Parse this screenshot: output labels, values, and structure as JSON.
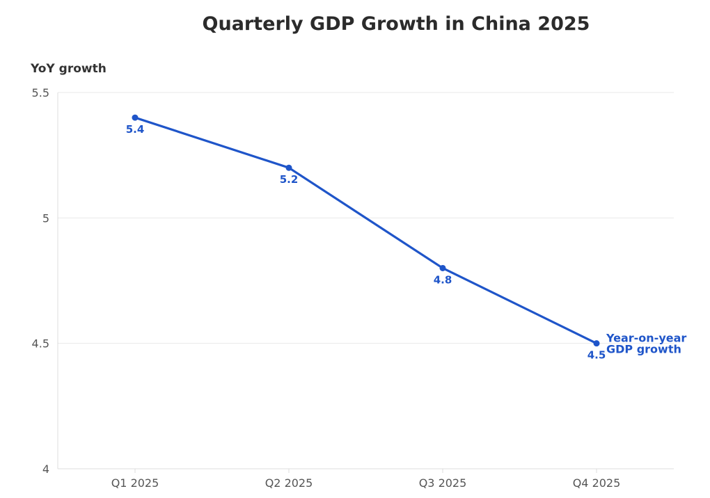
{
  "chart_data": {
    "type": "line",
    "title": "Quarterly GDP Growth in China 2025",
    "xlabel": "",
    "ylabel": "YoY growth",
    "categories": [
      "Q1 2025",
      "Q2 2025",
      "Q3 2025",
      "Q4 2025"
    ],
    "series": [
      {
        "name": "Year-on-year GDP growth",
        "name_lines": [
          "Year-on-year",
          "GDP growth"
        ],
        "values": [
          5.4,
          5.2,
          4.8,
          4.5
        ],
        "labels": [
          "5.4",
          "5.2",
          "4.8",
          "4.5"
        ],
        "color": "#1f55c9"
      }
    ],
    "ylim": [
      4,
      5.5
    ],
    "yticks": [
      4,
      4.5,
      5,
      5.5
    ],
    "ytick_labels": [
      "4",
      "4.5",
      "5",
      "5.5"
    ],
    "grid": true,
    "legend": "end-of-line label"
  },
  "colors": {
    "series": "#1f55c9",
    "grid": "#e9e9e9",
    "axis": "#dcdcdc"
  }
}
